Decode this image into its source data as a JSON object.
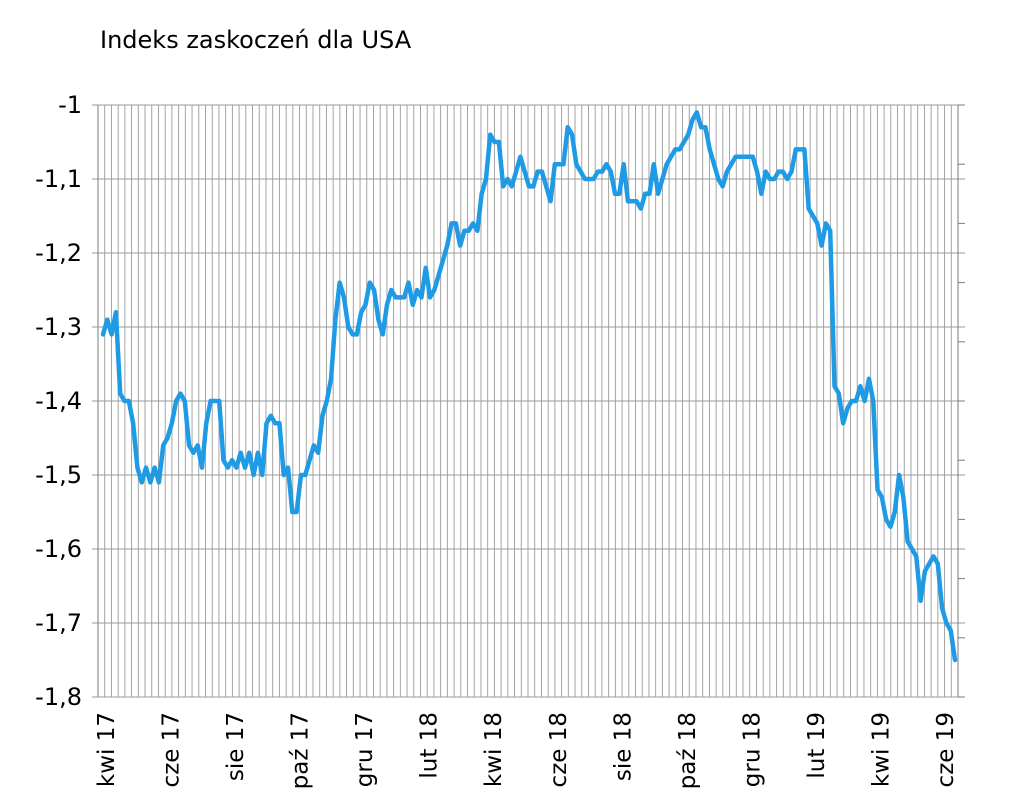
{
  "chart_data": {
    "type": "line",
    "title": "Indeks zaskoczeń dla USA",
    "xlabel": "",
    "ylabel": "",
    "ylim": [
      -1.8,
      -1.0
    ],
    "yticks": [
      -1,
      -1.1,
      -1.2,
      -1.3,
      -1.4,
      -1.5,
      -1.6,
      -1.7,
      -1.8
    ],
    "ytick_labels": [
      "-1",
      "-1,1",
      "-1,2",
      "-1,3",
      "-1,4",
      "-1,5",
      "-1,6",
      "-1,7",
      "-1,8"
    ],
    "x_tick_labels": [
      "kwi 17",
      "cze 17",
      "sie 17",
      "paź 17",
      "gru 17",
      "lut 18",
      "kwi 18",
      "cze 18",
      "sie 18",
      "paź 18",
      "gru 18",
      "lut 19",
      "kwi 19",
      "cze 19"
    ],
    "grid": "vertical",
    "line_color": "#1f9be6",
    "series": [
      {
        "values": [
          -1.31,
          -1.29,
          -1.31,
          -1.28,
          -1.39,
          -1.4,
          -1.4,
          -1.43,
          -1.49,
          -1.51,
          -1.49,
          -1.51,
          -1.49,
          -1.51,
          -1.46,
          -1.45,
          -1.43,
          -1.4,
          -1.39,
          -1.4,
          -1.46,
          -1.47,
          -1.46,
          -1.49,
          -1.43,
          -1.4,
          -1.4,
          -1.4,
          -1.48,
          -1.49,
          -1.48,
          -1.49,
          -1.47,
          -1.49,
          -1.47,
          -1.5,
          -1.47,
          -1.5,
          -1.43,
          -1.42,
          -1.43,
          -1.43,
          -1.5,
          -1.49,
          -1.55,
          -1.55,
          -1.5,
          -1.5,
          -1.48,
          -1.46,
          -1.47,
          -1.42,
          -1.4,
          -1.37,
          -1.29,
          -1.24,
          -1.26,
          -1.3,
          -1.31,
          -1.31,
          -1.28,
          -1.27,
          -1.24,
          -1.25,
          -1.29,
          -1.31,
          -1.27,
          -1.25,
          -1.26,
          -1.26,
          -1.26,
          -1.24,
          -1.27,
          -1.25,
          -1.26,
          -1.22,
          -1.26,
          -1.25,
          -1.23,
          -1.21,
          -1.19,
          -1.16,
          -1.16,
          -1.19,
          -1.17,
          -1.17,
          -1.16,
          -1.17,
          -1.12,
          -1.1,
          -1.04,
          -1.05,
          -1.05,
          -1.11,
          -1.1,
          -1.11,
          -1.09,
          -1.07,
          -1.09,
          -1.11,
          -1.11,
          -1.09,
          -1.09,
          -1.11,
          -1.13,
          -1.08,
          -1.08,
          -1.08,
          -1.03,
          -1.04,
          -1.08,
          -1.09,
          -1.1,
          -1.1,
          -1.1,
          -1.09,
          -1.09,
          -1.08,
          -1.09,
          -1.12,
          -1.12,
          -1.08,
          -1.13,
          -1.13,
          -1.13,
          -1.14,
          -1.12,
          -1.12,
          -1.08,
          -1.12,
          -1.1,
          -1.08,
          -1.07,
          -1.06,
          -1.06,
          -1.05,
          -1.04,
          -1.02,
          -1.01,
          -1.03,
          -1.03,
          -1.06,
          -1.08,
          -1.1,
          -1.11,
          -1.09,
          -1.08,
          -1.07,
          -1.07,
          -1.07,
          -1.07,
          -1.07,
          -1.09,
          -1.12,
          -1.09,
          -1.1,
          -1.1,
          -1.09,
          -1.09,
          -1.1,
          -1.09,
          -1.06,
          -1.06,
          -1.06,
          -1.14,
          -1.15,
          -1.16,
          -1.19,
          -1.16,
          -1.17,
          -1.38,
          -1.39,
          -1.43,
          -1.41,
          -1.4,
          -1.4,
          -1.38,
          -1.4,
          -1.37,
          -1.4,
          -1.52,
          -1.53,
          -1.56,
          -1.57,
          -1.55,
          -1.5,
          -1.53,
          -1.59,
          -1.6,
          -1.61,
          -1.67,
          -1.63,
          -1.62,
          -1.61,
          -1.62,
          -1.68,
          -1.7,
          -1.71,
          -1.75
        ]
      }
    ]
  }
}
